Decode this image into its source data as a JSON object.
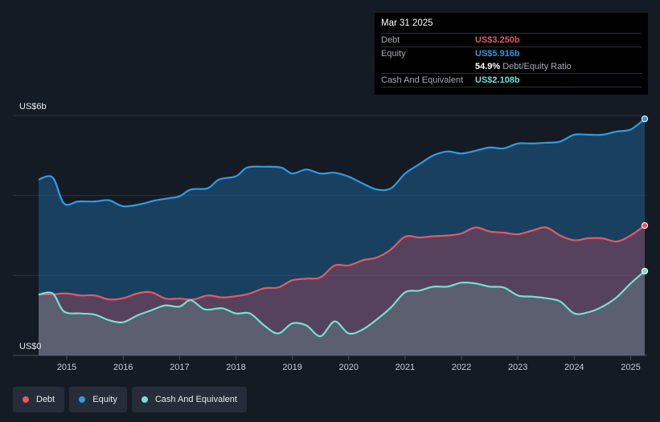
{
  "tooltip": {
    "date": "Mar 31 2025",
    "debt_label": "Debt",
    "debt_value": "US$3.250b",
    "equity_label": "Equity",
    "equity_value": "US$5.916b",
    "ratio_value": "54.9%",
    "ratio_label": "Debt/Equity Ratio",
    "cash_label": "Cash And Equivalent",
    "cash_value": "US$2.108b"
  },
  "colors": {
    "debt": "#e35a66",
    "equity": "#2f9be3",
    "cash": "#6fe3d0",
    "background": "#151b24"
  },
  "legend": [
    {
      "label": "Debt",
      "color": "#e35a66"
    },
    {
      "label": "Equity",
      "color": "#2f9be3"
    },
    {
      "label": "Cash And Equivalent",
      "color": "#6fe3d0"
    }
  ],
  "chart_data": {
    "type": "area",
    "y_top_label": "US$6b",
    "y_bottom_label": "US$0",
    "ylim": [
      0,
      6
    ],
    "xlim": [
      2014.5,
      2025.25
    ],
    "x_ticks": [
      "2015",
      "2016",
      "2017",
      "2018",
      "2019",
      "2020",
      "2021",
      "2022",
      "2023",
      "2024",
      "2025"
    ],
    "grid": true,
    "legend_position": "bottom-left",
    "series": [
      {
        "name": "Equity",
        "color": "#2f9be3",
        "points": [
          [
            2014.5,
            4.4
          ],
          [
            2014.75,
            4.45
          ],
          [
            2014.95,
            3.8
          ],
          [
            2015.2,
            3.85
          ],
          [
            2015.5,
            3.85
          ],
          [
            2015.75,
            3.88
          ],
          [
            2016.0,
            3.73
          ],
          [
            2016.3,
            3.78
          ],
          [
            2016.55,
            3.87
          ],
          [
            2016.8,
            3.93
          ],
          [
            2017.0,
            3.98
          ],
          [
            2017.2,
            4.15
          ],
          [
            2017.5,
            4.18
          ],
          [
            2017.7,
            4.4
          ],
          [
            2018.0,
            4.48
          ],
          [
            2018.2,
            4.7
          ],
          [
            2018.5,
            4.72
          ],
          [
            2018.8,
            4.7
          ],
          [
            2019.0,
            4.55
          ],
          [
            2019.25,
            4.65
          ],
          [
            2019.5,
            4.55
          ],
          [
            2019.75,
            4.57
          ],
          [
            2020.0,
            4.47
          ],
          [
            2020.25,
            4.3
          ],
          [
            2020.5,
            4.15
          ],
          [
            2020.75,
            4.18
          ],
          [
            2021.0,
            4.55
          ],
          [
            2021.25,
            4.78
          ],
          [
            2021.5,
            5.0
          ],
          [
            2021.75,
            5.1
          ],
          [
            2022.0,
            5.05
          ],
          [
            2022.25,
            5.12
          ],
          [
            2022.5,
            5.2
          ],
          [
            2022.75,
            5.18
          ],
          [
            2023.0,
            5.3
          ],
          [
            2023.25,
            5.3
          ],
          [
            2023.5,
            5.32
          ],
          [
            2023.75,
            5.35
          ],
          [
            2024.0,
            5.52
          ],
          [
            2024.25,
            5.52
          ],
          [
            2024.5,
            5.52
          ],
          [
            2024.75,
            5.6
          ],
          [
            2025.0,
            5.65
          ],
          [
            2025.25,
            5.916
          ]
        ]
      },
      {
        "name": "Debt",
        "color": "#e35a66",
        "points": [
          [
            2014.5,
            1.53
          ],
          [
            2014.75,
            1.53
          ],
          [
            2015.0,
            1.55
          ],
          [
            2015.25,
            1.5
          ],
          [
            2015.5,
            1.5
          ],
          [
            2015.75,
            1.4
          ],
          [
            2016.0,
            1.43
          ],
          [
            2016.25,
            1.55
          ],
          [
            2016.5,
            1.58
          ],
          [
            2016.75,
            1.42
          ],
          [
            2017.0,
            1.42
          ],
          [
            2017.25,
            1.4
          ],
          [
            2017.5,
            1.5
          ],
          [
            2017.75,
            1.45
          ],
          [
            2018.0,
            1.48
          ],
          [
            2018.25,
            1.55
          ],
          [
            2018.5,
            1.68
          ],
          [
            2018.75,
            1.7
          ],
          [
            2019.0,
            1.88
          ],
          [
            2019.25,
            1.92
          ],
          [
            2019.5,
            1.95
          ],
          [
            2019.75,
            2.25
          ],
          [
            2020.0,
            2.25
          ],
          [
            2020.25,
            2.38
          ],
          [
            2020.5,
            2.45
          ],
          [
            2020.75,
            2.65
          ],
          [
            2021.0,
            2.97
          ],
          [
            2021.25,
            2.95
          ],
          [
            2021.5,
            2.98
          ],
          [
            2021.75,
            3.0
          ],
          [
            2022.0,
            3.05
          ],
          [
            2022.25,
            3.2
          ],
          [
            2022.5,
            3.1
          ],
          [
            2022.75,
            3.07
          ],
          [
            2023.0,
            3.03
          ],
          [
            2023.25,
            3.12
          ],
          [
            2023.5,
            3.2
          ],
          [
            2023.75,
            3.0
          ],
          [
            2024.0,
            2.88
          ],
          [
            2024.25,
            2.93
          ],
          [
            2024.5,
            2.93
          ],
          [
            2024.75,
            2.85
          ],
          [
            2025.0,
            3.0
          ],
          [
            2025.25,
            3.25
          ]
        ]
      },
      {
        "name": "Cash And Equivalent",
        "color": "#6fe3d0",
        "points": [
          [
            2014.5,
            1.52
          ],
          [
            2014.75,
            1.55
          ],
          [
            2014.95,
            1.1
          ],
          [
            2015.25,
            1.05
          ],
          [
            2015.5,
            1.02
          ],
          [
            2015.75,
            0.88
          ],
          [
            2016.0,
            0.83
          ],
          [
            2016.25,
            1.0
          ],
          [
            2016.5,
            1.13
          ],
          [
            2016.75,
            1.25
          ],
          [
            2017.0,
            1.22
          ],
          [
            2017.2,
            1.38
          ],
          [
            2017.45,
            1.15
          ],
          [
            2017.75,
            1.18
          ],
          [
            2018.0,
            1.05
          ],
          [
            2018.25,
            1.05
          ],
          [
            2018.5,
            0.75
          ],
          [
            2018.75,
            0.55
          ],
          [
            2019.0,
            0.8
          ],
          [
            2019.25,
            0.75
          ],
          [
            2019.5,
            0.48
          ],
          [
            2019.75,
            0.85
          ],
          [
            2020.0,
            0.55
          ],
          [
            2020.25,
            0.65
          ],
          [
            2020.5,
            0.9
          ],
          [
            2020.75,
            1.2
          ],
          [
            2021.0,
            1.58
          ],
          [
            2021.25,
            1.62
          ],
          [
            2021.5,
            1.72
          ],
          [
            2021.75,
            1.72
          ],
          [
            2022.0,
            1.82
          ],
          [
            2022.25,
            1.8
          ],
          [
            2022.5,
            1.72
          ],
          [
            2022.75,
            1.7
          ],
          [
            2023.0,
            1.5
          ],
          [
            2023.25,
            1.47
          ],
          [
            2023.5,
            1.43
          ],
          [
            2023.75,
            1.35
          ],
          [
            2024.0,
            1.05
          ],
          [
            2024.25,
            1.08
          ],
          [
            2024.5,
            1.22
          ],
          [
            2024.75,
            1.45
          ],
          [
            2025.0,
            1.8
          ],
          [
            2025.25,
            2.108
          ]
        ]
      }
    ]
  }
}
